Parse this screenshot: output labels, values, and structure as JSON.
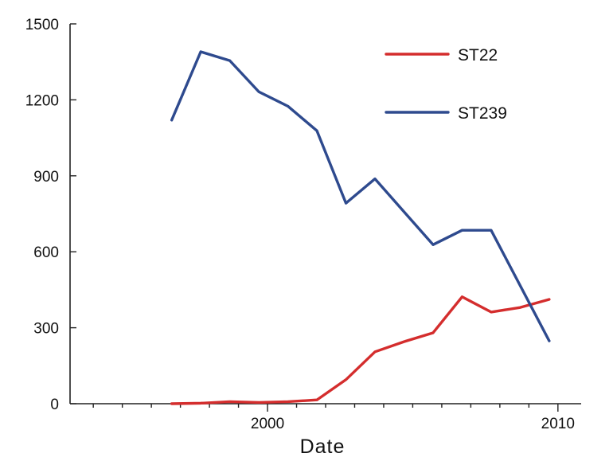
{
  "chart_data": {
    "type": "line",
    "xlabel": "Date",
    "ylabel": "",
    "xlim": [
      1993.2,
      2010.8
    ],
    "ylim": [
      0,
      1500
    ],
    "x_ticks": [
      2000,
      2010
    ],
    "y_ticks": [
      0,
      300,
      600,
      900,
      1200,
      1500
    ],
    "grid": false,
    "legend_position": "top-right",
    "x": [
      1996.7,
      1997.7,
      1998.7,
      1999.7,
      2000.7,
      2001.7,
      2002.7,
      2003.7,
      2004.7,
      2005.7,
      2006.7,
      2007.7,
      2008.7,
      2009.7
    ],
    "series": [
      {
        "name": "ST22",
        "color": "#d42d2d",
        "values": [
          0,
          2,
          8,
          5,
          8,
          15,
          95,
          205,
          245,
          280,
          422,
          362,
          380,
          412
        ]
      },
      {
        "name": "ST239",
        "color": "#2e4a8e",
        "values": [
          1120,
          1390,
          1355,
          1232,
          1175,
          1078,
          792,
          888,
          null,
          628,
          685,
          685,
          null,
          248
        ]
      }
    ]
  }
}
